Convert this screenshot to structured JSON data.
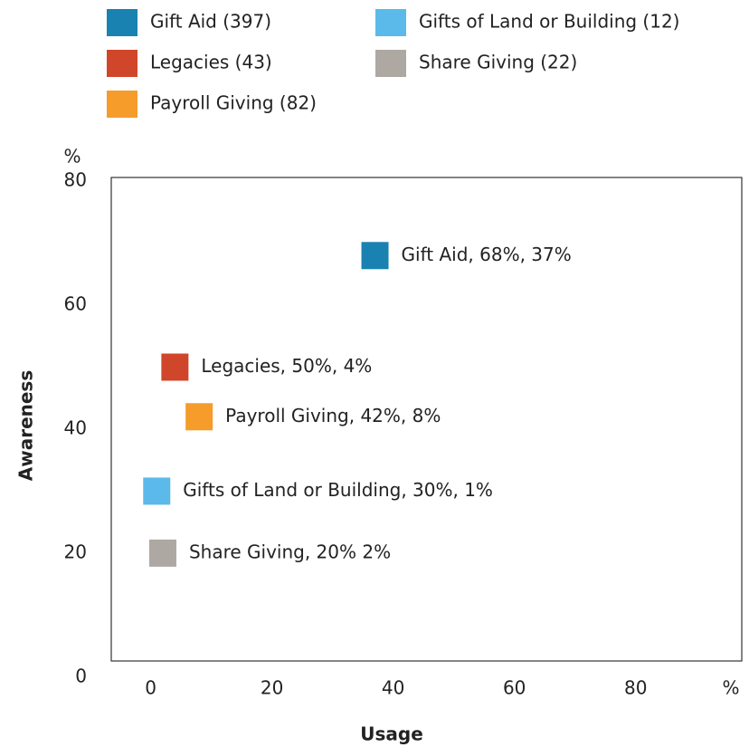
{
  "chart_data": {
    "type": "scatter",
    "x_label": "Usage",
    "y_label": "Awareness",
    "x_unit": "%",
    "y_unit": "%",
    "xlim": [
      -6.5,
      97.5
    ],
    "ylim": [
      2.6,
      80.6
    ],
    "xticks": [
      0,
      20,
      40,
      60,
      80
    ],
    "yticks": [
      0,
      20,
      40,
      60,
      80
    ],
    "series": [
      {
        "name": "Gift Aid (397)",
        "color": "#1a82b0",
        "x": [
          37
        ],
        "values": [
          68
        ],
        "value_labels": [
          "Gift Aid, 68%, 37%"
        ]
      },
      {
        "name": "Legacies (43)",
        "color": "#d0462a",
        "x": [
          4
        ],
        "values": [
          50
        ],
        "value_labels": [
          "Legacies, 50%, 4%"
        ]
      },
      {
        "name": "Payroll Giving (82)",
        "color": "#f59c2b",
        "x": [
          8
        ],
        "values": [
          42
        ],
        "value_labels": [
          "Payroll Giving, 42%, 8%"
        ]
      },
      {
        "name": "Gifts of Land or Building (12)",
        "color": "#5bbaea",
        "x": [
          1
        ],
        "values": [
          30
        ],
        "value_labels": [
          "Gifts of Land or Building, 30%, 1%"
        ]
      },
      {
        "name": "Share Giving (22)",
        "color": "#aea8a3",
        "x": [
          2
        ],
        "values": [
          20
        ],
        "value_labels": [
          "Share Giving, 20% 2%"
        ]
      }
    ]
  }
}
